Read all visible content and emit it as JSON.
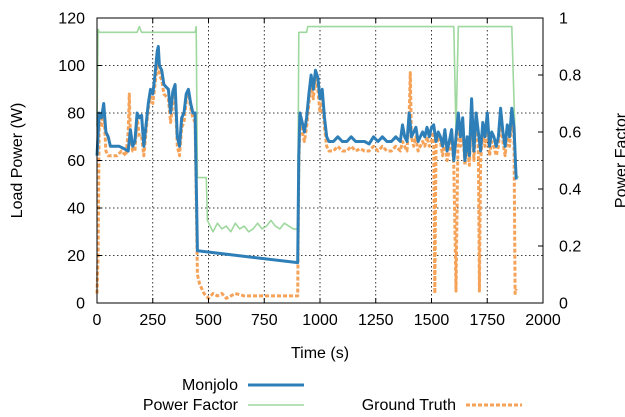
{
  "chart_data": {
    "type": "line",
    "x_axis": {
      "label": "Time (s)",
      "ticks": [
        "0",
        "250",
        "500",
        "750",
        "1000",
        "1250",
        "1500",
        "1750",
        "2000"
      ],
      "range": [
        0,
        2000
      ]
    },
    "y_axis_left": {
      "label": "Load Power (W)",
      "ticks": [
        "0",
        "20",
        "40",
        "60",
        "80",
        "100",
        "120"
      ],
      "range": [
        0,
        120
      ]
    },
    "y_axis_right": {
      "label": "Power Factor",
      "ticks": [
        "0",
        "0.2",
        "0.4",
        "0.6",
        "0.8",
        "1"
      ],
      "range": [
        0,
        1
      ]
    },
    "grid": true,
    "legend_position": "bottom",
    "series": [
      {
        "name": "Monjolo",
        "axis": "left",
        "color": "#2e7fb8",
        "style": "solid-thick",
        "points": [
          [
            0,
            62
          ],
          [
            10,
            80
          ],
          [
            20,
            78
          ],
          [
            30,
            84
          ],
          [
            40,
            72
          ],
          [
            50,
            70
          ],
          [
            60,
            66
          ],
          [
            80,
            66
          ],
          [
            100,
            66
          ],
          [
            120,
            65
          ],
          [
            140,
            64
          ],
          [
            150,
            73
          ],
          [
            160,
            66
          ],
          [
            170,
            68
          ],
          [
            180,
            80
          ],
          [
            190,
            78
          ],
          [
            200,
            79
          ],
          [
            210,
            66
          ],
          [
            230,
            84
          ],
          [
            240,
            90
          ],
          [
            250,
            88
          ],
          [
            260,
            96
          ],
          [
            270,
            106
          ],
          [
            275,
            108
          ],
          [
            280,
            100
          ],
          [
            290,
            98
          ],
          [
            300,
            92
          ],
          [
            310,
            91
          ],
          [
            320,
            90
          ],
          [
            330,
            80
          ],
          [
            340,
            89
          ],
          [
            350,
            92
          ],
          [
            360,
            70
          ],
          [
            370,
            66
          ],
          [
            380,
            78
          ],
          [
            390,
            80
          ],
          [
            400,
            88
          ],
          [
            410,
            90
          ],
          [
            420,
            84
          ],
          [
            430,
            80
          ],
          [
            440,
            80
          ],
          [
            450,
            22
          ],
          [
            900,
            17
          ],
          [
            905,
            62
          ],
          [
            910,
            80
          ],
          [
            920,
            76
          ],
          [
            930,
            72
          ],
          [
            940,
            78
          ],
          [
            950,
            88
          ],
          [
            960,
            96
          ],
          [
            970,
            90
          ],
          [
            980,
            98
          ],
          [
            990,
            95
          ],
          [
            1000,
            86
          ],
          [
            1010,
            90
          ],
          [
            1020,
            78
          ],
          [
            1030,
            70
          ],
          [
            1040,
            68
          ],
          [
            1060,
            68
          ],
          [
            1080,
            70
          ],
          [
            1100,
            68
          ],
          [
            1120,
            68
          ],
          [
            1140,
            70
          ],
          [
            1160,
            68
          ],
          [
            1180,
            68
          ],
          [
            1200,
            68
          ],
          [
            1220,
            67
          ],
          [
            1240,
            70
          ],
          [
            1260,
            68
          ],
          [
            1280,
            70
          ],
          [
            1300,
            68
          ],
          [
            1320,
            68
          ],
          [
            1340,
            70
          ],
          [
            1360,
            68
          ],
          [
            1370,
            75
          ],
          [
            1380,
            70
          ],
          [
            1390,
            68
          ],
          [
            1400,
            80
          ],
          [
            1410,
            70
          ],
          [
            1420,
            72
          ],
          [
            1430,
            74
          ],
          [
            1440,
            68
          ],
          [
            1450,
            70
          ],
          [
            1460,
            72
          ],
          [
            1470,
            70
          ],
          [
            1480,
            74
          ],
          [
            1490,
            70
          ],
          [
            1500,
            74
          ],
          [
            1510,
            75
          ],
          [
            1520,
            68
          ],
          [
            1530,
            72
          ],
          [
            1540,
            70
          ],
          [
            1550,
            66
          ],
          [
            1560,
            73
          ],
          [
            1570,
            64
          ],
          [
            1580,
            68
          ],
          [
            1590,
            73
          ],
          [
            1600,
            60
          ],
          [
            1610,
            70
          ],
          [
            1620,
            80
          ],
          [
            1630,
            70
          ],
          [
            1640,
            78
          ],
          [
            1650,
            60
          ],
          [
            1660,
            70
          ],
          [
            1670,
            62
          ],
          [
            1680,
            86
          ],
          [
            1690,
            64
          ],
          [
            1700,
            80
          ],
          [
            1710,
            72
          ],
          [
            1720,
            64
          ],
          [
            1730,
            76
          ],
          [
            1740,
            70
          ],
          [
            1750,
            80
          ],
          [
            1760,
            66
          ],
          [
            1770,
            72
          ],
          [
            1780,
            70
          ],
          [
            1790,
            66
          ],
          [
            1800,
            70
          ],
          [
            1810,
            82
          ],
          [
            1820,
            72
          ],
          [
            1830,
            66
          ],
          [
            1840,
            75
          ],
          [
            1850,
            70
          ],
          [
            1860,
            82
          ],
          [
            1870,
            74
          ],
          [
            1880,
            52
          ]
        ]
      },
      {
        "name": "Power Factor",
        "axis": "right",
        "color": "#9fd89f",
        "style": "solid-thin",
        "points": [
          [
            0,
            0.62
          ],
          [
            5,
            0.96
          ],
          [
            10,
            0.95
          ],
          [
            100,
            0.95
          ],
          [
            180,
            0.95
          ],
          [
            190,
            0.97
          ],
          [
            200,
            0.95
          ],
          [
            440,
            0.95
          ],
          [
            445,
            0.97
          ],
          [
            450,
            0.44
          ],
          [
            490,
            0.44
          ],
          [
            495,
            0.29
          ],
          [
            520,
            0.25
          ],
          [
            540,
            0.28
          ],
          [
            560,
            0.26
          ],
          [
            580,
            0.27
          ],
          [
            600,
            0.25
          ],
          [
            620,
            0.28
          ],
          [
            640,
            0.26
          ],
          [
            660,
            0.27
          ],
          [
            680,
            0.25
          ],
          [
            700,
            0.26
          ],
          [
            720,
            0.28
          ],
          [
            740,
            0.26
          ],
          [
            760,
            0.27
          ],
          [
            780,
            0.29
          ],
          [
            800,
            0.27
          ],
          [
            820,
            0.26
          ],
          [
            840,
            0.28
          ],
          [
            860,
            0.27
          ],
          [
            880,
            0.26
          ],
          [
            900,
            0.26
          ],
          [
            905,
            0.95
          ],
          [
            940,
            0.95
          ],
          [
            945,
            0.97
          ],
          [
            1600,
            0.97
          ],
          [
            1610,
            0.6
          ],
          [
            1620,
            0.97
          ],
          [
            1860,
            0.97
          ],
          [
            1880,
            0.45
          ],
          [
            1890,
            0.44
          ]
        ]
      },
      {
        "name": "Ground Truth",
        "axis": "left",
        "color": "#f6a35a",
        "style": "dashed",
        "points": [
          [
            0,
            4
          ],
          [
            5,
            20
          ],
          [
            10,
            78
          ],
          [
            20,
            74
          ],
          [
            30,
            82
          ],
          [
            40,
            64
          ],
          [
            50,
            62
          ],
          [
            70,
            62
          ],
          [
            90,
            62
          ],
          [
            110,
            64
          ],
          [
            130,
            62
          ],
          [
            140,
            72
          ],
          [
            145,
            88
          ],
          [
            150,
            70
          ],
          [
            160,
            64
          ],
          [
            170,
            64
          ],
          [
            180,
            78
          ],
          [
            190,
            70
          ],
          [
            200,
            70
          ],
          [
            210,
            62
          ],
          [
            230,
            82
          ],
          [
            240,
            87
          ],
          [
            250,
            84
          ],
          [
            260,
            92
          ],
          [
            270,
            100
          ],
          [
            275,
            103
          ],
          [
            280,
            96
          ],
          [
            290,
            94
          ],
          [
            300,
            88
          ],
          [
            310,
            87
          ],
          [
            320,
            86
          ],
          [
            330,
            76
          ],
          [
            340,
            84
          ],
          [
            350,
            88
          ],
          [
            360,
            66
          ],
          [
            370,
            62
          ],
          [
            380,
            74
          ],
          [
            390,
            76
          ],
          [
            400,
            85
          ],
          [
            410,
            88
          ],
          [
            420,
            82
          ],
          [
            430,
            78
          ],
          [
            440,
            76
          ],
          [
            450,
            12
          ],
          [
            460,
            8
          ],
          [
            480,
            4
          ],
          [
            500,
            2
          ],
          [
            520,
            4
          ],
          [
            540,
            3
          ],
          [
            560,
            4
          ],
          [
            580,
            2
          ],
          [
            600,
            3
          ],
          [
            620,
            4
          ],
          [
            660,
            3
          ],
          [
            700,
            3
          ],
          [
            760,
            3
          ],
          [
            800,
            3
          ],
          [
            860,
            3
          ],
          [
            900,
            3
          ],
          [
            905,
            58
          ],
          [
            910,
            76
          ],
          [
            920,
            72
          ],
          [
            930,
            68
          ],
          [
            940,
            74
          ],
          [
            950,
            84
          ],
          [
            960,
            92
          ],
          [
            970,
            86
          ],
          [
            980,
            96
          ],
          [
            990,
            90
          ],
          [
            1000,
            80
          ],
          [
            1010,
            86
          ],
          [
            1020,
            74
          ],
          [
            1030,
            66
          ],
          [
            1040,
            64
          ],
          [
            1060,
            64
          ],
          [
            1080,
            66
          ],
          [
            1100,
            64
          ],
          [
            1120,
            64
          ],
          [
            1140,
            66
          ],
          [
            1160,
            64
          ],
          [
            1180,
            65
          ],
          [
            1200,
            64
          ],
          [
            1220,
            64
          ],
          [
            1240,
            66
          ],
          [
            1260,
            64
          ],
          [
            1280,
            66
          ],
          [
            1300,
            64
          ],
          [
            1320,
            64
          ],
          [
            1340,
            66
          ],
          [
            1360,
            64
          ],
          [
            1370,
            68
          ],
          [
            1380,
            66
          ],
          [
            1390,
            64
          ],
          [
            1400,
            80
          ],
          [
            1405,
            97
          ],
          [
            1410,
            70
          ],
          [
            1420,
            66
          ],
          [
            1430,
            70
          ],
          [
            1440,
            64
          ],
          [
            1450,
            66
          ],
          [
            1460,
            68
          ],
          [
            1470,
            66
          ],
          [
            1480,
            70
          ],
          [
            1490,
            66
          ],
          [
            1500,
            68
          ],
          [
            1510,
            72
          ],
          [
            1515,
            4
          ],
          [
            1520,
            66
          ],
          [
            1530,
            70
          ],
          [
            1540,
            68
          ],
          [
            1550,
            62
          ],
          [
            1560,
            70
          ],
          [
            1570,
            60
          ],
          [
            1580,
            64
          ],
          [
            1590,
            70
          ],
          [
            1600,
            58
          ],
          [
            1610,
            5
          ],
          [
            1620,
            80
          ],
          [
            1630,
            66
          ],
          [
            1640,
            74
          ],
          [
            1650,
            58
          ],
          [
            1660,
            66
          ],
          [
            1670,
            58
          ],
          [
            1680,
            84
          ],
          [
            1690,
            60
          ],
          [
            1700,
            76
          ],
          [
            1710,
            68
          ],
          [
            1715,
            5
          ],
          [
            1720,
            60
          ],
          [
            1730,
            72
          ],
          [
            1740,
            66
          ],
          [
            1750,
            76
          ],
          [
            1760,
            62
          ],
          [
            1770,
            68
          ],
          [
            1780,
            66
          ],
          [
            1790,
            62
          ],
          [
            1800,
            66
          ],
          [
            1810,
            78
          ],
          [
            1820,
            68
          ],
          [
            1830,
            62
          ],
          [
            1840,
            70
          ],
          [
            1850,
            66
          ],
          [
            1860,
            78
          ],
          [
            1870,
            70
          ],
          [
            1875,
            4
          ],
          [
            1880,
            6
          ]
        ]
      }
    ]
  }
}
